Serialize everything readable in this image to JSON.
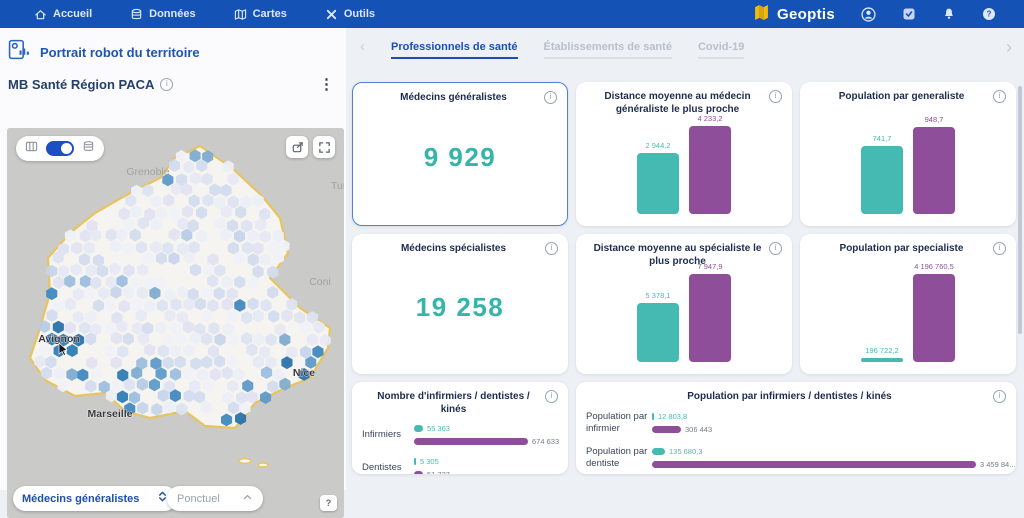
{
  "nav": {
    "items": [
      {
        "label": "Accueil"
      },
      {
        "label": "Données"
      },
      {
        "label": "Cartes"
      },
      {
        "label": "Outils"
      }
    ],
    "brand": "Geoptis"
  },
  "panel": {
    "title": "Portrait robot du territoire",
    "subtitle": "MB Santé Région PACA",
    "menu_glyph": "⋮"
  },
  "map": {
    "cities": {
      "grenoble": "Grenoble",
      "turin": "Tur",
      "coni": "Coni",
      "avignon": "Avignon",
      "nice": "Nice",
      "marseille": "Marseille"
    },
    "layer_select": "Médecins généralistes",
    "mode_select": "Ponctuel",
    "help_label": "?"
  },
  "tabs": {
    "prev_glyph": "‹",
    "next_glyph": "›",
    "items": [
      {
        "label": "Professionnels de santé",
        "active": true
      },
      {
        "label": "Établissements de santé",
        "active": false
      },
      {
        "label": "Covid-19",
        "active": false
      }
    ]
  },
  "cards": {
    "generalistes": {
      "title": "Médecins généralistes",
      "value": "9 929"
    },
    "specialistes": {
      "title": "Médecins spécialistes",
      "value": "19 258"
    }
  },
  "colors": {
    "teal": "#45BAB2",
    "purple": "#8F4E99",
    "accent_blue": "#1D4FAE",
    "header_blue": "#1452B6",
    "brand_yellow": "#F2B90D"
  },
  "chart_data": [
    {
      "type": "bar",
      "title": "Distance moyenne au médecin généraliste le plus proche",
      "values": [
        2944.2,
        4233.2
      ],
      "labels": [
        "2 944,2",
        "4 233,2"
      ],
      "colors": [
        "#45BAB2",
        "#8F4E99"
      ],
      "ylim": [
        0,
        4450
      ]
    },
    {
      "type": "bar",
      "title": "Population par generaliste",
      "values": [
        741.7,
        948.7
      ],
      "labels": [
        "741,7",
        "948,7"
      ],
      "colors": [
        "#45BAB2",
        "#8F4E99"
      ],
      "ylim": [
        0,
        1000
      ]
    },
    {
      "type": "bar",
      "title": "Distance moyenne au spécialiste le plus proche",
      "values": [
        5378.1,
        7947.9
      ],
      "labels": [
        "5 378,1",
        "7 947,9"
      ],
      "colors": [
        "#45BAB2",
        "#8F4E99"
      ],
      "ylim": [
        0,
        8350
      ]
    },
    {
      "type": "bar",
      "title": "Population par specialiste",
      "values": [
        196722.2,
        4196760.5
      ],
      "labels": [
        "196 722,2",
        "4 196 760,5"
      ],
      "colors": [
        "#45BAB2",
        "#8F4E99"
      ],
      "ylim": [
        0,
        4400000
      ]
    },
    {
      "type": "bar-horizontal",
      "title": "Nombre d'infirmiers / dentistes / kinés",
      "categories": [
        "Infirmiers",
        "Dentistes"
      ],
      "series": [
        {
          "color": "#45BAB2",
          "values": [
            55363,
            5305
          ],
          "labels": [
            "55 363",
            "5 305"
          ]
        },
        {
          "color": "#8F4E99",
          "values": [
            674633,
            51727
          ],
          "labels": [
            "674 633",
            "51 727"
          ]
        }
      ],
      "xlim": [
        0,
        700000
      ]
    },
    {
      "type": "bar-horizontal",
      "title": "Population par infirmiers / dentistes / kinés",
      "categories": [
        "Population par infirmier",
        "Population par dentiste"
      ],
      "series": [
        {
          "color": "#45BAB2",
          "values": [
            12803.8,
            135680.3
          ],
          "labels": [
            "12 803,8",
            "135 680,3"
          ]
        },
        {
          "color": "#8F4E99",
          "values": [
            306443,
            3459841
          ],
          "labels": [
            "306 443",
            "3 459 84..."
          ]
        }
      ],
      "xlim": [
        0,
        3520000
      ]
    }
  ]
}
